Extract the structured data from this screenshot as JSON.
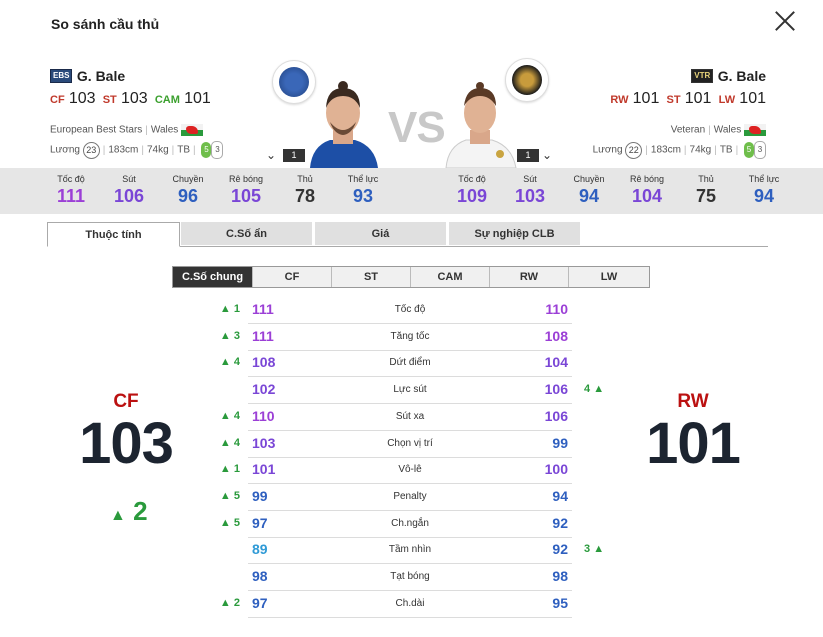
{
  "window": {
    "title": "So sánh cầu thủ"
  },
  "left_player": {
    "season_badge": "EBS",
    "name": "G. Bale",
    "positions": [
      {
        "pos": "CF",
        "ovr": "103",
        "color": "#c0392b"
      },
      {
        "pos": "ST",
        "ovr": "103",
        "color": "#c0392b"
      },
      {
        "pos": "CAM",
        "ovr": "101",
        "color": "#3ba02e"
      }
    ],
    "season": "European Best Stars",
    "nation": "Wales",
    "salary_label": "Lương",
    "salary": "23",
    "height": "183cm",
    "weight": "74kg",
    "body": "TB",
    "foot_strong": "5",
    "foot_weak": "3",
    "count": "1",
    "stats": [
      {
        "label": "Tốc độ",
        "value": "111",
        "color": "#9b3fd6"
      },
      {
        "label": "Sút",
        "value": "106",
        "color": "#7a46d6"
      },
      {
        "label": "Chuyền",
        "value": "96",
        "color": "#2e5fbf"
      },
      {
        "label": "Rê bóng",
        "value": "105",
        "color": "#7a46d6"
      },
      {
        "label": "Thủ",
        "value": "78",
        "color": "#333333"
      },
      {
        "label": "Thể lực",
        "value": "93",
        "color": "#2e5fbf"
      }
    ]
  },
  "right_player": {
    "season_badge": "VTR",
    "name": "G. Bale",
    "positions": [
      {
        "pos": "RW",
        "ovr": "101",
        "color": "#c0392b"
      },
      {
        "pos": "ST",
        "ovr": "101",
        "color": "#c0392b"
      },
      {
        "pos": "LW",
        "ovr": "101",
        "color": "#c0392b"
      }
    ],
    "season": "Veteran",
    "nation": "Wales",
    "salary_label": "Lương",
    "salary": "22",
    "height": "183cm",
    "weight": "74kg",
    "body": "TB",
    "foot_strong": "5",
    "foot_weak": "3",
    "count": "1",
    "stats": [
      {
        "label": "Tốc độ",
        "value": "109",
        "color": "#7a46d6"
      },
      {
        "label": "Sút",
        "value": "103",
        "color": "#7a46d6"
      },
      {
        "label": "Chuyền",
        "value": "94",
        "color": "#2e5fbf"
      },
      {
        "label": "Rê bóng",
        "value": "104",
        "color": "#7a46d6"
      },
      {
        "label": "Thủ",
        "value": "75",
        "color": "#333333"
      },
      {
        "label": "Thể lực",
        "value": "94",
        "color": "#2e5fbf"
      }
    ]
  },
  "vs_label": "VS",
  "tabs": [
    "Thuộc tính",
    "C.Số ẩn",
    "Giá",
    "Sự nghiệp CLB"
  ],
  "active_tab": 0,
  "position_tabs": [
    "C.Số chung",
    "CF",
    "ST",
    "CAM",
    "RW",
    "LW"
  ],
  "active_position_tab": 0,
  "left_summary": {
    "pos": "CF",
    "ovr": "103",
    "diff": "2"
  },
  "right_summary": {
    "pos": "RW",
    "ovr": "101"
  },
  "rows": [
    {
      "name": "Tốc độ",
      "left": "111",
      "right": "110",
      "left_diff": "1",
      "right_diff": "",
      "lc": "#9b3fd6",
      "rc": "#9b3fd6"
    },
    {
      "name": "Tăng tốc",
      "left": "111",
      "right": "108",
      "left_diff": "3",
      "right_diff": "",
      "lc": "#9b3fd6",
      "rc": "#9b3fd6"
    },
    {
      "name": "Dứt điểm",
      "left": "108",
      "right": "104",
      "left_diff": "4",
      "right_diff": "",
      "lc": "#7a46d6",
      "rc": "#7a46d6"
    },
    {
      "name": "Lực sút",
      "left": "102",
      "right": "106",
      "left_diff": "",
      "right_diff": "4",
      "lc": "#7a46d6",
      "rc": "#7a46d6"
    },
    {
      "name": "Sút xa",
      "left": "110",
      "right": "106",
      "left_diff": "4",
      "right_diff": "",
      "lc": "#9b3fd6",
      "rc": "#7a46d6"
    },
    {
      "name": "Chọn vị trí",
      "left": "103",
      "right": "99",
      "left_diff": "4",
      "right_diff": "",
      "lc": "#7a46d6",
      "rc": "#2e5fbf"
    },
    {
      "name": "Vô-lê",
      "left": "101",
      "right": "100",
      "left_diff": "1",
      "right_diff": "",
      "lc": "#7a46d6",
      "rc": "#7a46d6"
    },
    {
      "name": "Penalty",
      "left": "99",
      "right": "94",
      "left_diff": "5",
      "right_diff": "",
      "lc": "#2e5fbf",
      "rc": "#2e5fbf"
    },
    {
      "name": "Ch.ngắn",
      "left": "97",
      "right": "92",
      "left_diff": "5",
      "right_diff": "",
      "lc": "#2e5fbf",
      "rc": "#2e5fbf"
    },
    {
      "name": "Tầm nhìn",
      "left": "89",
      "right": "92",
      "left_diff": "",
      "right_diff": "3",
      "lc": "#2f9ad6",
      "rc": "#2e5fbf"
    },
    {
      "name": "Tạt bóng",
      "left": "98",
      "right": "98",
      "left_diff": "",
      "right_diff": "",
      "lc": "#2e5fbf",
      "rc": "#2e5fbf"
    },
    {
      "name": "Ch.dài",
      "left": "97",
      "right": "95",
      "left_diff": "2",
      "right_diff": "",
      "lc": "#2e5fbf",
      "rc": "#2e5fbf"
    }
  ]
}
